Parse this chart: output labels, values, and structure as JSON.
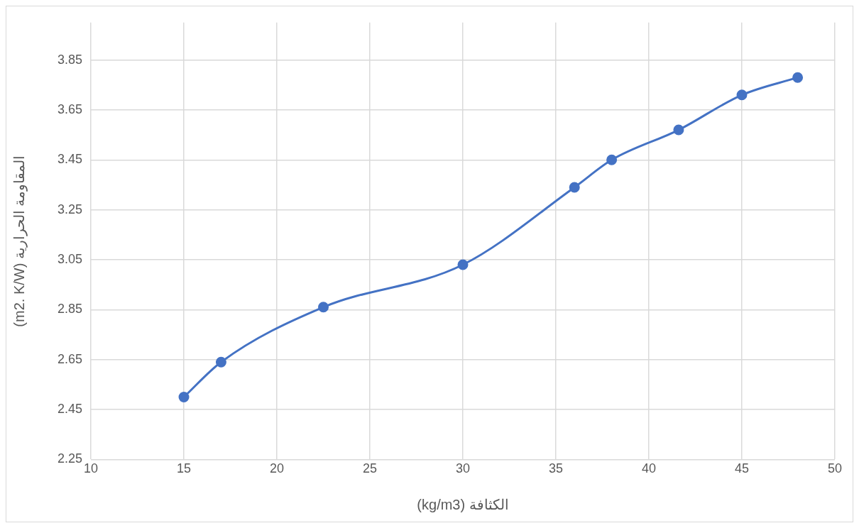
{
  "chart_data": {
    "type": "line",
    "xlabel": "الكثافة (kg/m3)",
    "ylabel": "المقاومة الحرارية (m2. K/W)",
    "x": [
      15,
      17,
      22.5,
      30,
      36,
      38,
      41.6,
      45,
      48
    ],
    "series": [
      {
        "color": "#4472c4",
        "values": [
          2.5,
          2.64,
          2.86,
          3.03,
          3.34,
          3.45,
          3.57,
          3.71,
          3.78
        ]
      }
    ],
    "xlim": [
      10,
      50
    ],
    "xticks": [
      10,
      15,
      20,
      25,
      30,
      35,
      40,
      45,
      50
    ],
    "ylim": [
      2.25,
      4.0
    ],
    "yticks": [
      2.25,
      2.45,
      2.65,
      2.85,
      3.05,
      3.25,
      3.45,
      3.65,
      3.85
    ],
    "grid": true,
    "marker": "circle",
    "line_style": "solid"
  }
}
